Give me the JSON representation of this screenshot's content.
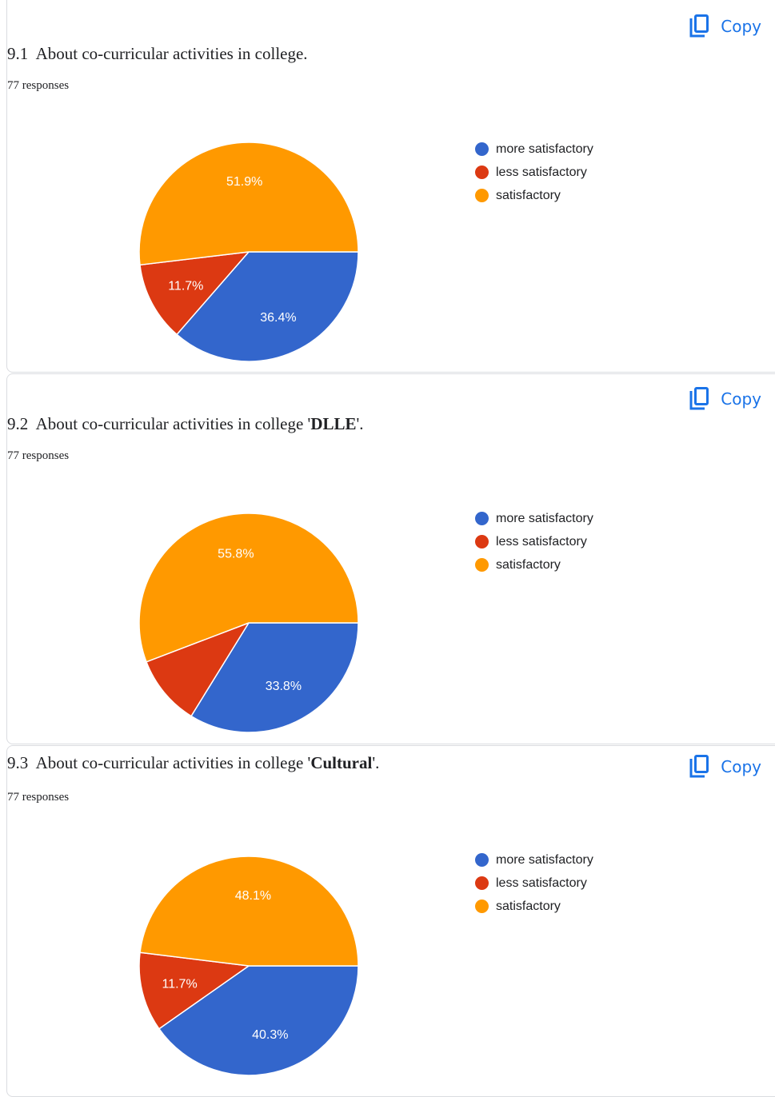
{
  "copy_label": "Copy",
  "legend_labels": [
    "more satisfactory",
    "less satisfactory",
    "satisfactory"
  ],
  "colors": {
    "more satisfactory": "#3366cc",
    "less satisfactory": "#dc3912",
    "satisfactory": "#ff9900"
  },
  "questions": [
    {
      "number": "9.1",
      "title_prefix": "About co-curricular activities in college.",
      "title_bold": "",
      "title_suffix": "",
      "responses": "77  responses"
    },
    {
      "number": "9.2",
      "title_prefix": "About co-curricular activities in college '",
      "title_bold": "DLLE",
      "title_suffix": "'.",
      "responses": "77  responses"
    },
    {
      "number": "9.3",
      "title_prefix": "About co-curricular activities in college '",
      "title_bold": "Cultural",
      "title_suffix": "'.",
      "responses": "77  responses"
    }
  ],
  "chart_data": [
    {
      "type": "pie",
      "categories": [
        "more satisfactory",
        "less satisfactory",
        "satisfactory"
      ],
      "values": [
        36.4,
        11.7,
        51.9
      ],
      "labels": [
        "36.4%",
        "11.7%",
        "51.9%"
      ]
    },
    {
      "type": "pie",
      "categories": [
        "more satisfactory",
        "less satisfactory",
        "satisfactory"
      ],
      "values": [
        33.8,
        10.4,
        55.8
      ],
      "labels": [
        "33.8%",
        "",
        "55.8%"
      ]
    },
    {
      "type": "pie",
      "categories": [
        "more satisfactory",
        "less satisfactory",
        "satisfactory"
      ],
      "values": [
        40.3,
        11.7,
        48.1
      ],
      "labels": [
        "40.3%",
        "11.7%",
        "48.1%"
      ]
    }
  ]
}
